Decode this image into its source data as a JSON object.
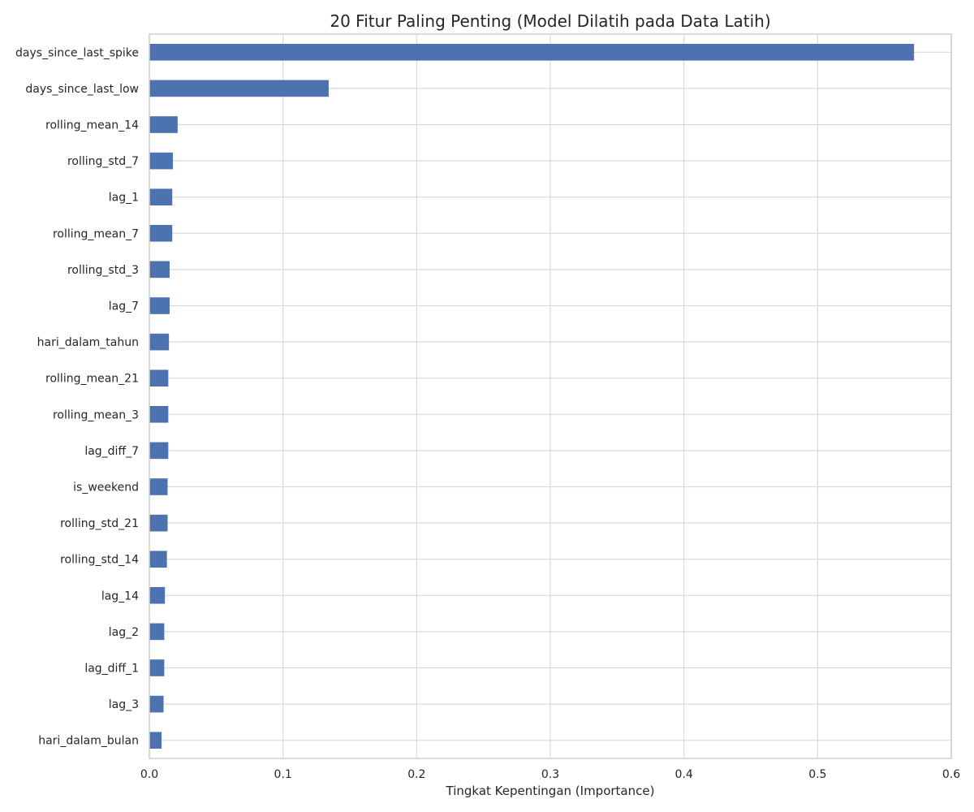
{
  "chart_data": {
    "type": "bar",
    "orientation": "horizontal",
    "title": "20 Fitur Paling Penting (Model Dilatih pada Data Latih)",
    "xlabel": "Tingkat Kepentingan (Importance)",
    "ylabel": "",
    "xlim": [
      0,
      0.6
    ],
    "xticks": [
      0.0,
      0.1,
      0.2,
      0.3,
      0.4,
      0.5,
      0.6
    ],
    "xtick_labels": [
      "0.0",
      "0.1",
      "0.2",
      "0.3",
      "0.4",
      "0.5",
      "0.6"
    ],
    "grid": true,
    "bar_color": "#4c72b0",
    "categories": [
      "days_since_last_spike",
      "days_since_last_low",
      "rolling_mean_14",
      "rolling_std_7",
      "lag_1",
      "rolling_mean_7",
      "rolling_std_3",
      "lag_7",
      "hari_dalam_tahun",
      "rolling_mean_21",
      "rolling_mean_3",
      "lag_diff_7",
      "is_weekend",
      "rolling_std_21",
      "rolling_std_14",
      "lag_14",
      "lag_2",
      "lag_diff_1",
      "lag_3",
      "hari_dalam_bulan"
    ],
    "values": [
      0.572,
      0.134,
      0.021,
      0.0175,
      0.017,
      0.017,
      0.015,
      0.015,
      0.0145,
      0.014,
      0.014,
      0.014,
      0.0135,
      0.0135,
      0.013,
      0.0115,
      0.011,
      0.011,
      0.0105,
      0.009
    ]
  }
}
